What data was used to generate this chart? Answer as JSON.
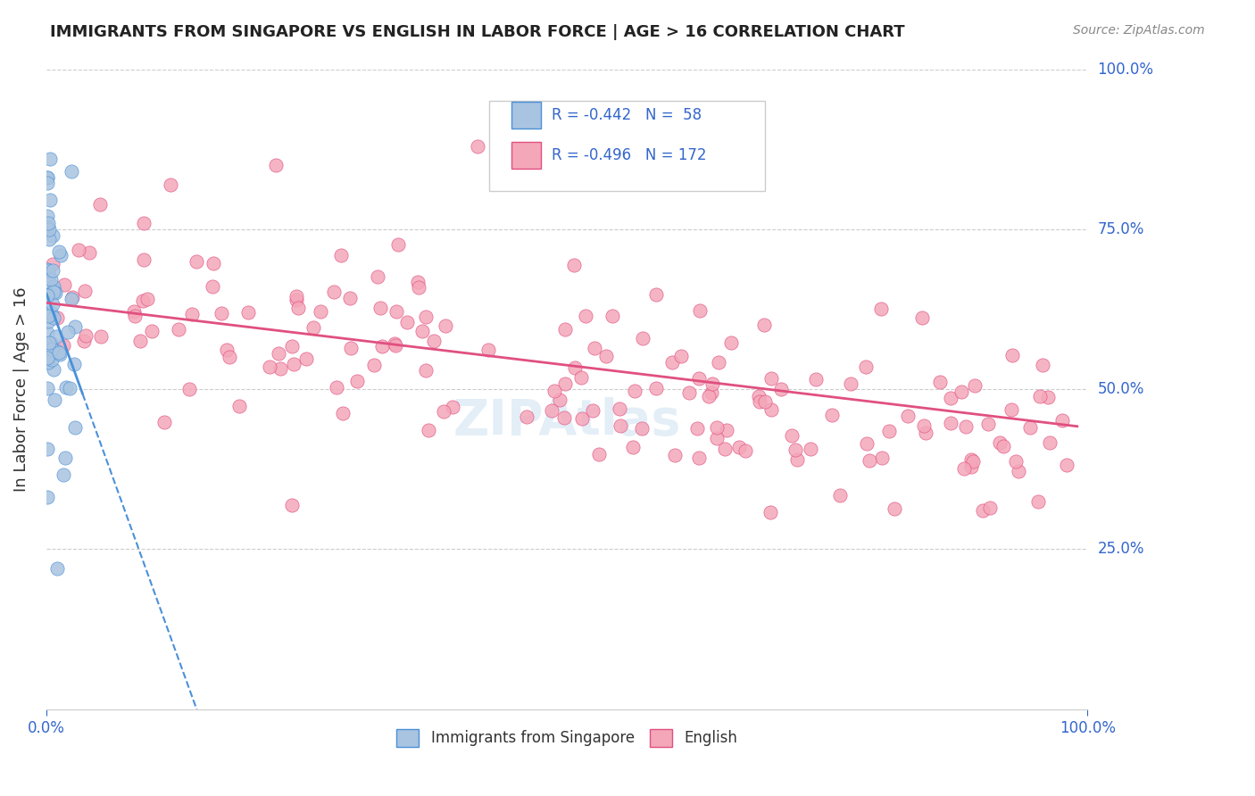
{
  "title": "IMMIGRANTS FROM SINGAPORE VS ENGLISH IN LABOR FORCE | AGE > 16 CORRELATION CHART",
  "source": "Source: ZipAtlas.com",
  "ylabel": "In Labor Force | Age > 16",
  "xlim": [
    0.0,
    1.0
  ],
  "ylim": [
    0.0,
    1.0
  ],
  "xtick_labels": [
    "0.0%",
    "100.0%"
  ],
  "ytick_labels": [
    "25.0%",
    "50.0%",
    "75.0%",
    "100.0%"
  ],
  "ytick_positions": [
    0.25,
    0.5,
    0.75,
    1.0
  ],
  "legend_r1": "R = -0.442",
  "legend_n1": "N =  58",
  "legend_r2": "R = -0.496",
  "legend_n2": "N = 172",
  "color_singapore": "#a8c4e0",
  "color_english": "#f4a7b9",
  "color_singapore_line": "#4a90d9",
  "color_english_line": "#e05080"
}
